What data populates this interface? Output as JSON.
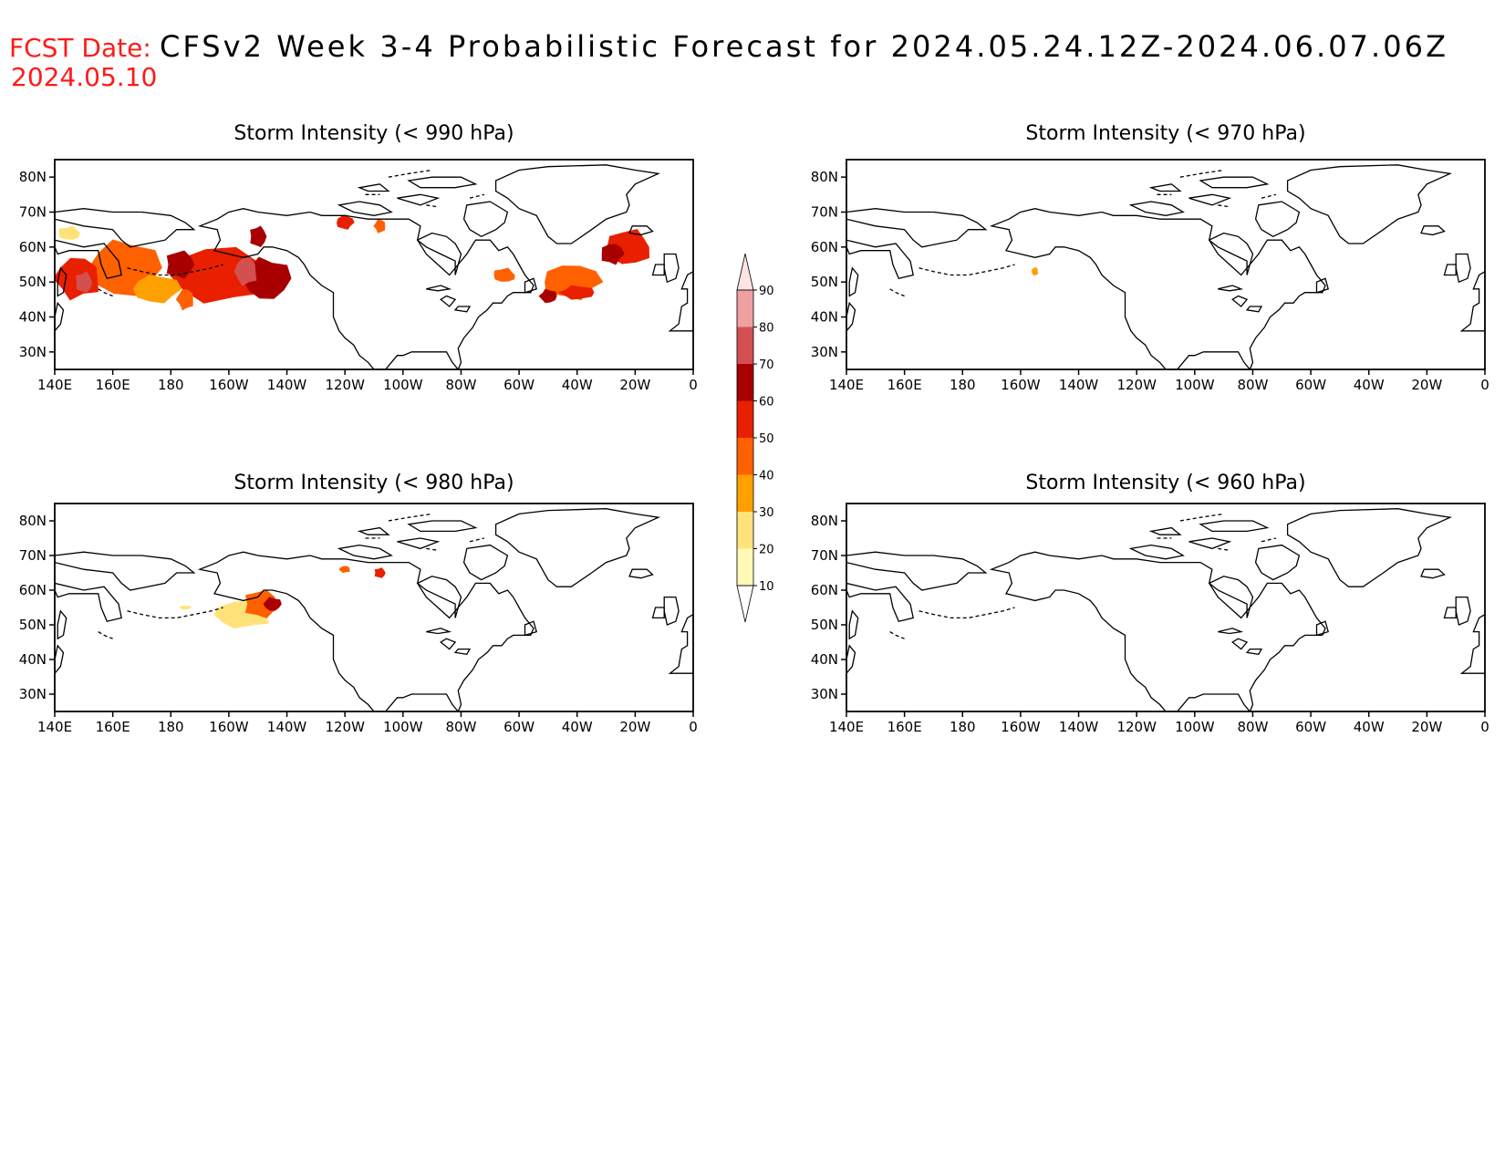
{
  "header": {
    "fcst_label": "FCST Date:",
    "fcst_date": "2024.05.10",
    "title": "CFSv2 Week 3-4 Probabilistic Forecast for 2024.05.24.12Z-2024.06.07.06Z"
  },
  "lat_ticks": [
    "80N",
    "70N",
    "60N",
    "50N",
    "40N",
    "30N"
  ],
  "lon_ticks": [
    "140E",
    "160E",
    "180",
    "160W",
    "140W",
    "120W",
    "100W",
    "80W",
    "60W",
    "40W",
    "20W",
    "0"
  ],
  "colorbar": {
    "ticks": [
      "10",
      "20",
      "30",
      "40",
      "50",
      "60",
      "70",
      "80",
      "90"
    ],
    "colors": [
      "#fff9b8",
      "#ffe37a",
      "#ff9f00",
      "#ff6000",
      "#e82000",
      "#a80000",
      "#d45050",
      "#f0a0a0",
      "#ffe4e4"
    ]
  },
  "panels": [
    {
      "id": "p990",
      "title": "Storm Intensity (< 990 hPa)",
      "blobs": [
        {
          "lon": -163,
          "lat": 52,
          "rlon": 17,
          "rlat": 8,
          "level": 4
        },
        {
          "lon": -177,
          "lat": 55,
          "rlon": 5,
          "rlat": 4,
          "level": 5
        },
        {
          "lon": -147,
          "lat": 51,
          "rlon": 8,
          "rlat": 6,
          "level": 5
        },
        {
          "lon": -154,
          "lat": 53,
          "rlon": 4,
          "rlat": 4,
          "level": 6
        },
        {
          "lon": -150,
          "lat": 63,
          "rlon": 3,
          "rlat": 3,
          "level": 5
        },
        {
          "lon": 164,
          "lat": 54,
          "rlon": 12,
          "rlat": 8,
          "level": 3
        },
        {
          "lon": 148,
          "lat": 51,
          "rlon": 8,
          "rlat": 6,
          "level": 4
        },
        {
          "lon": 150,
          "lat": 50,
          "rlon": 3,
          "rlat": 3,
          "level": 6
        },
        {
          "lon": 175,
          "lat": 48,
          "rlon": 8,
          "rlat": 4,
          "level": 2
        },
        {
          "lon": -175,
          "lat": 45,
          "rlon": 3,
          "rlat": 3,
          "level": 3
        },
        {
          "lon": 145,
          "lat": 64,
          "rlon": 4,
          "rlat": 2,
          "level": 1
        },
        {
          "lon": -120,
          "lat": 67,
          "rlon": 3,
          "rlat": 2,
          "level": 4
        },
        {
          "lon": -108,
          "lat": 66,
          "rlon": 2,
          "rlat": 2,
          "level": 3
        },
        {
          "lon": -65,
          "lat": 52,
          "rlon": 4,
          "rlat": 2,
          "level": 3
        },
        {
          "lon": -42,
          "lat": 50,
          "rlon": 10,
          "rlat": 5,
          "level": 3
        },
        {
          "lon": -40,
          "lat": 47,
          "rlon": 6,
          "rlat": 2,
          "level": 4
        },
        {
          "lon": -22,
          "lat": 60,
          "rlon": 8,
          "rlat": 5,
          "level": 4
        },
        {
          "lon": -28,
          "lat": 58,
          "rlon": 4,
          "rlat": 3,
          "level": 5
        },
        {
          "lon": -50,
          "lat": 46,
          "rlon": 3,
          "rlat": 2,
          "level": 5
        }
      ]
    },
    {
      "id": "p970",
      "title": "Storm Intensity (< 970 hPa)",
      "blobs": [
        {
          "lon": -155,
          "lat": 53,
          "rlon": 1.2,
          "rlat": 1.2,
          "level": 2
        }
      ]
    },
    {
      "id": "p980",
      "title": "Storm Intensity (< 980 hPa)",
      "blobs": [
        {
          "lon": -155,
          "lat": 53,
          "rlon": 10,
          "rlat": 4,
          "level": 1
        },
        {
          "lon": -149,
          "lat": 56,
          "rlon": 6,
          "rlat": 4,
          "level": 3
        },
        {
          "lon": -145,
          "lat": 56,
          "rlon": 3,
          "rlat": 2,
          "level": 5
        },
        {
          "lon": -120,
          "lat": 66,
          "rlon": 2,
          "rlat": 1,
          "level": 3
        },
        {
          "lon": -108,
          "lat": 65,
          "rlon": 2,
          "rlat": 1.5,
          "level": 4
        },
        {
          "lon": -175,
          "lat": 55,
          "rlon": 2,
          "rlat": 0.6,
          "level": 1
        }
      ]
    },
    {
      "id": "p960",
      "title": "Storm Intensity (< 960 hPa)",
      "blobs": []
    }
  ]
}
